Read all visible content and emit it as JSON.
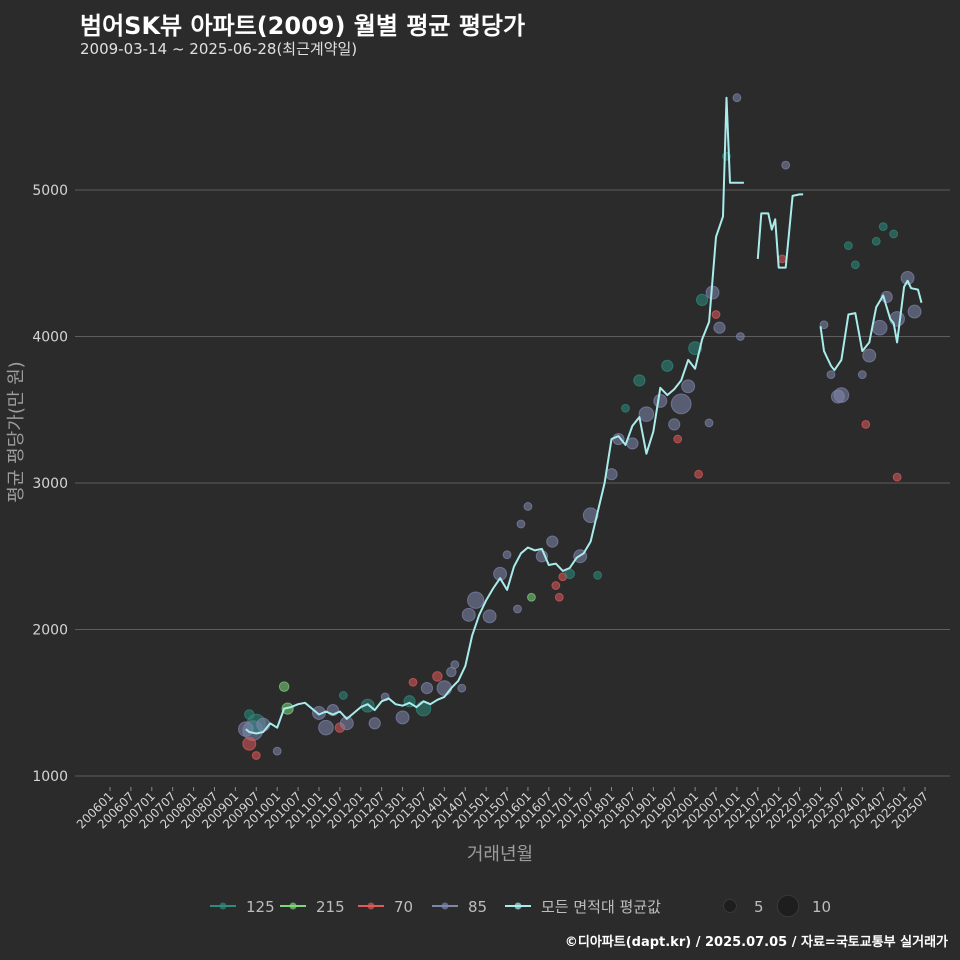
{
  "title": "범어SK뷰 아파트(2009) 월별 평균 평당가",
  "subtitle": "2009-03-14 ~ 2025-06-28(최근계약일)",
  "credit": "©디아파트(dapt.kr) / 2025.07.05 / 자료=국토교통부 실거래가",
  "chart_data": {
    "type": "line",
    "xlabel": "거래년월",
    "ylabel": "평균 평당가(만 원)",
    "ylim": [
      950,
      5800
    ],
    "yticks": [
      1000,
      2000,
      3000,
      4000,
      5000
    ],
    "x_start": "2006-01",
    "x_end": "2025-07",
    "x_ticks": [
      "200601",
      "200607",
      "200701",
      "200707",
      "200801",
      "200807",
      "200901",
      "200907",
      "201001",
      "201007",
      "201101",
      "201107",
      "201201",
      "201207",
      "201301",
      "201307",
      "201401",
      "201407",
      "201501",
      "201507",
      "201601",
      "201607",
      "201701",
      "201707",
      "201801",
      "201807",
      "201901",
      "201907",
      "202001",
      "202007",
      "202101",
      "202107",
      "202201",
      "202207",
      "202301",
      "202307",
      "202401",
      "202407",
      "202501",
      "202507"
    ],
    "legend": {
      "series": [
        {
          "label": "125",
          "color": "#2e8b7e"
        },
        {
          "label": "215",
          "color": "#7ed67e"
        },
        {
          "label": "70",
          "color": "#e05a5a"
        },
        {
          "label": "85",
          "color": "#7f86ad"
        },
        {
          "label": "모든 면적대 평균값",
          "color": "#a8ecec"
        }
      ],
      "size_items": [
        {
          "label": "5",
          "value": 5
        },
        {
          "label": "10",
          "value": 10
        }
      ]
    },
    "average_line": [
      [
        "2009-04",
        1320
      ],
      [
        "2009-05",
        1300
      ],
      [
        "2009-07",
        1290
      ],
      [
        "2009-09",
        1300
      ],
      [
        "2009-11",
        1360
      ],
      [
        "2010-01",
        1330
      ],
      [
        "2010-03",
        1460
      ],
      [
        "2010-05",
        1470
      ],
      [
        "2010-07",
        1490
      ],
      [
        "2010-09",
        1500
      ],
      [
        "2010-11",
        1460
      ],
      [
        "2011-01",
        1420
      ],
      [
        "2011-03",
        1440
      ],
      [
        "2011-05",
        1420
      ],
      [
        "2011-07",
        1440
      ],
      [
        "2011-09",
        1390
      ],
      [
        "2011-11",
        1430
      ],
      [
        "2012-01",
        1470
      ],
      [
        "2012-03",
        1490
      ],
      [
        "2012-05",
        1450
      ],
      [
        "2012-07",
        1510
      ],
      [
        "2012-09",
        1530
      ],
      [
        "2012-11",
        1490
      ],
      [
        "2013-01",
        1480
      ],
      [
        "2013-03",
        1500
      ],
      [
        "2013-05",
        1470
      ],
      [
        "2013-07",
        1510
      ],
      [
        "2013-09",
        1490
      ],
      [
        "2013-11",
        1520
      ],
      [
        "2014-01",
        1540
      ],
      [
        "2014-03",
        1600
      ],
      [
        "2014-05",
        1650
      ],
      [
        "2014-07",
        1750
      ],
      [
        "2014-09",
        1960
      ],
      [
        "2014-11",
        2100
      ],
      [
        "2015-01",
        2200
      ],
      [
        "2015-03",
        2280
      ],
      [
        "2015-05",
        2350
      ],
      [
        "2015-07",
        2270
      ],
      [
        "2015-09",
        2430
      ],
      [
        "2015-11",
        2520
      ],
      [
        "2016-01",
        2560
      ],
      [
        "2016-03",
        2540
      ],
      [
        "2016-05",
        2550
      ],
      [
        "2016-07",
        2440
      ],
      [
        "2016-09",
        2450
      ],
      [
        "2016-11",
        2400
      ],
      [
        "2017-01",
        2420
      ],
      [
        "2017-03",
        2490
      ],
      [
        "2017-05",
        2520
      ],
      [
        "2017-07",
        2600
      ],
      [
        "2017-09",
        2800
      ],
      [
        "2017-11",
        3000
      ],
      [
        "2018-01",
        3300
      ],
      [
        "2018-03",
        3320
      ],
      [
        "2018-05",
        3260
      ],
      [
        "2018-07",
        3390
      ],
      [
        "2018-09",
        3450
      ],
      [
        "2018-11",
        3200
      ],
      [
        "2019-01",
        3350
      ],
      [
        "2019-03",
        3650
      ],
      [
        "2019-05",
        3600
      ],
      [
        "2019-07",
        3640
      ],
      [
        "2019-09",
        3700
      ],
      [
        "2019-11",
        3840
      ],
      [
        "2020-01",
        3780
      ],
      [
        "2020-03",
        3980
      ],
      [
        "2020-05",
        4100
      ],
      [
        "2020-07",
        4680
      ],
      [
        "2020-09",
        4820
      ],
      [
        "2020-10",
        5630
      ],
      [
        "2020-11",
        5050
      ],
      [
        "2021-01",
        5050
      ],
      [
        "2021-03",
        5050
      ],
      null,
      [
        "2021-07",
        4530
      ],
      [
        "2021-08",
        4840
      ],
      [
        "2021-10",
        4840
      ],
      [
        "2021-11",
        4730
      ],
      [
        "2021-12",
        4800
      ],
      [
        "2022-01",
        4470
      ],
      [
        "2022-03",
        4470
      ],
      [
        "2022-05",
        4960
      ],
      [
        "2022-07",
        4970
      ],
      [
        "2022-08",
        4970
      ],
      null,
      [
        "2023-01",
        4070
      ],
      [
        "2023-02",
        3900
      ],
      [
        "2023-03",
        3850
      ],
      [
        "2023-04",
        3800
      ],
      [
        "2023-05",
        3770
      ],
      [
        "2023-07",
        3840
      ],
      [
        "2023-09",
        4150
      ],
      [
        "2023-11",
        4160
      ],
      [
        "2024-01",
        3900
      ],
      [
        "2024-03",
        3960
      ],
      [
        "2024-05",
        4200
      ],
      [
        "2024-07",
        4280
      ],
      [
        "2024-09",
        4120
      ],
      [
        "2024-10",
        4090
      ],
      [
        "2024-11",
        3960
      ],
      [
        "2025-01",
        4340
      ],
      [
        "2025-02",
        4380
      ],
      [
        "2025-03",
        4330
      ],
      [
        "2025-05",
        4320
      ],
      [
        "2025-06",
        4230
      ]
    ],
    "points": [
      [
        "2009-05",
        1420,
        "125",
        3
      ],
      [
        "2009-06",
        1310,
        "85",
        9
      ],
      [
        "2009-07",
        1360,
        "125",
        8
      ],
      [
        "2009-05",
        1220,
        "70",
        5
      ],
      [
        "2009-07",
        1140,
        "70",
        2
      ],
      [
        "2009-04",
        1320,
        "85",
        6
      ],
      [
        "2009-09",
        1350,
        "85",
        5
      ],
      [
        "2010-01",
        1170,
        "85",
        2
      ],
      [
        "2010-03",
        1610,
        "215",
        3
      ],
      [
        "2010-04",
        1460,
        "215",
        4
      ],
      [
        "2011-01",
        1430,
        "85",
        5
      ],
      [
        "2011-03",
        1330,
        "85",
        6
      ],
      [
        "2011-05",
        1450,
        "85",
        4
      ],
      [
        "2011-07",
        1330,
        "70",
        3
      ],
      [
        "2011-09",
        1360,
        "85",
        5
      ],
      [
        "2011-08",
        1550,
        "125",
        2
      ],
      [
        "2012-03",
        1480,
        "125",
        5
      ],
      [
        "2012-05",
        1360,
        "85",
        4
      ],
      [
        "2012-08",
        1540,
        "85",
        2
      ],
      [
        "2013-01",
        1400,
        "85",
        5
      ],
      [
        "2013-03",
        1510,
        "125",
        4
      ],
      [
        "2013-04",
        1640,
        "70",
        2
      ],
      [
        "2013-07",
        1460,
        "125",
        6
      ],
      [
        "2013-08",
        1600,
        "85",
        4
      ],
      [
        "2013-11",
        1680,
        "70",
        3
      ],
      [
        "2014-01",
        1600,
        "85",
        6
      ],
      [
        "2014-03",
        1710,
        "85",
        3
      ],
      [
        "2014-04",
        1760,
        "85",
        2
      ],
      [
        "2014-06",
        1600,
        "85",
        2
      ],
      [
        "2014-08",
        2100,
        "85",
        5
      ],
      [
        "2014-10",
        2200,
        "85",
        7
      ],
      [
        "2015-02",
        2090,
        "85",
        5
      ],
      [
        "2015-05",
        2380,
        "85",
        5
      ],
      [
        "2015-07",
        2510,
        "85",
        2
      ],
      [
        "2015-10",
        2140,
        "85",
        2
      ],
      [
        "2015-11",
        2720,
        "85",
        2
      ],
      [
        "2016-01",
        2840,
        "85",
        2
      ],
      [
        "2016-02",
        2220,
        "215",
        2
      ],
      [
        "2016-05",
        2500,
        "85",
        4
      ],
      [
        "2016-08",
        2600,
        "85",
        4
      ],
      [
        "2016-09",
        2300,
        "70",
        2
      ],
      [
        "2016-10",
        2220,
        "70",
        2
      ],
      [
        "2016-11",
        2360,
        "70",
        2
      ],
      [
        "2017-01",
        2380,
        "125",
        3
      ],
      [
        "2017-04",
        2500,
        "85",
        5
      ],
      [
        "2017-07",
        2780,
        "85",
        6
      ],
      [
        "2017-09",
        2370,
        "125",
        2
      ],
      [
        "2018-01",
        3060,
        "85",
        4
      ],
      [
        "2018-03",
        3300,
        "85",
        4
      ],
      [
        "2018-05",
        3510,
        "125",
        2
      ],
      [
        "2018-07",
        3270,
        "85",
        4
      ],
      [
        "2018-09",
        3700,
        "125",
        4
      ],
      [
        "2018-11",
        3470,
        "85",
        6
      ],
      [
        "2019-03",
        3560,
        "85",
        5
      ],
      [
        "2019-05",
        3800,
        "125",
        4
      ],
      [
        "2019-07",
        3400,
        "85",
        4
      ],
      [
        "2019-08",
        3300,
        "70",
        2
      ],
      [
        "2019-09",
        3540,
        "85",
        9
      ],
      [
        "2019-11",
        3660,
        "85",
        5
      ],
      [
        "2020-01",
        3920,
        "125",
        5
      ],
      [
        "2020-02",
        3060,
        "70",
        2
      ],
      [
        "2020-03",
        4250,
        "125",
        4
      ],
      [
        "2020-05",
        3410,
        "85",
        2
      ],
      [
        "2020-06",
        4300,
        "85",
        5
      ],
      [
        "2020-07",
        4150,
        "70",
        2
      ],
      [
        "2020-08",
        4060,
        "85",
        4
      ],
      [
        "2020-10",
        5230,
        "125",
        2
      ],
      [
        "2021-01",
        5630,
        "85",
        2
      ],
      [
        "2021-02",
        4000,
        "85",
        2
      ],
      [
        "2022-02",
        4530,
        "70",
        2
      ],
      [
        "2022-03",
        5170,
        "85",
        2
      ],
      [
        "2023-02",
        4080,
        "85",
        2
      ],
      [
        "2023-04",
        3740,
        "85",
        2
      ],
      [
        "2023-06",
        3590,
        "85",
        5
      ],
      [
        "2023-07",
        3600,
        "85",
        6
      ],
      [
        "2023-09",
        4620,
        "125",
        2
      ],
      [
        "2023-11",
        4490,
        "125",
        2
      ],
      [
        "2024-01",
        3740,
        "85",
        2
      ],
      [
        "2024-02",
        3400,
        "70",
        2
      ],
      [
        "2024-03",
        3870,
        "85",
        5
      ],
      [
        "2024-05",
        4650,
        "125",
        2
      ],
      [
        "2024-06",
        4060,
        "85",
        6
      ],
      [
        "2024-07",
        4750,
        "125",
        2
      ],
      [
        "2024-08",
        4270,
        "85",
        4
      ],
      [
        "2024-10",
        4700,
        "125",
        2
      ],
      [
        "2024-11",
        3040,
        "70",
        2
      ],
      [
        "2024-11",
        4120,
        "85",
        6
      ],
      [
        "2025-02",
        4400,
        "85",
        5
      ],
      [
        "2025-04",
        4170,
        "85",
        5
      ]
    ]
  }
}
